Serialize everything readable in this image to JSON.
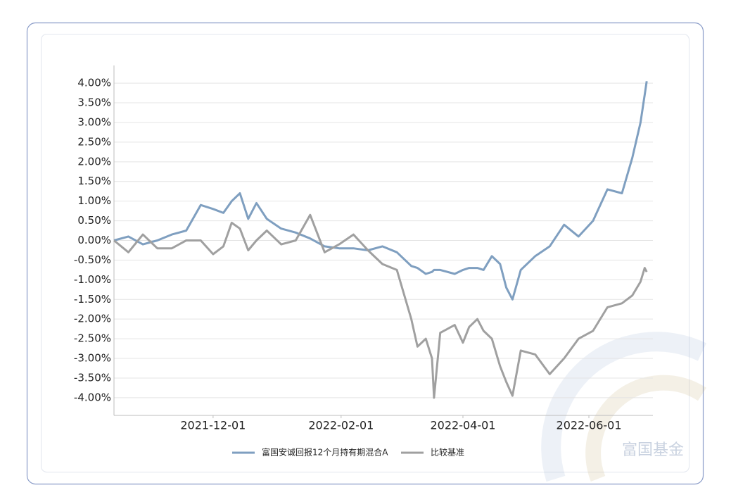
{
  "chart_data": {
    "type": "line",
    "x": [
      "2021-10-14",
      "2021-10-21",
      "2021-10-28",
      "2021-11-04",
      "2021-11-11",
      "2021-11-18",
      "2021-11-25",
      "2021-12-01",
      "2021-12-06",
      "2021-12-10",
      "2021-12-14",
      "2021-12-18",
      "2021-12-22",
      "2021-12-27",
      "2022-01-03",
      "2022-01-10",
      "2022-01-17",
      "2022-01-24",
      "2022-01-31",
      "2022-02-07",
      "2022-02-14",
      "2022-02-21",
      "2022-02-28",
      "2022-03-07",
      "2022-03-10",
      "2022-03-14",
      "2022-03-17",
      "2022-03-18",
      "2022-03-21",
      "2022-03-28",
      "2022-04-01",
      "2022-04-04",
      "2022-04-08",
      "2022-04-11",
      "2022-04-15",
      "2022-04-19",
      "2022-04-22",
      "2022-04-25",
      "2022-04-29",
      "2022-05-06",
      "2022-05-13",
      "2022-05-20",
      "2022-05-27",
      "2022-06-03",
      "2022-06-10",
      "2022-06-17",
      "2022-06-22",
      "2022-06-26",
      "2022-06-28",
      "2022-06-29"
    ],
    "series": [
      {
        "name": "富国安诚回报12个月持有期混合A",
        "color": "#7f9fc0",
        "values": [
          0.0,
          0.1,
          -0.1,
          0.0,
          0.15,
          0.25,
          0.9,
          0.8,
          0.7,
          1.0,
          1.2,
          0.55,
          0.95,
          0.55,
          0.3,
          0.2,
          0.05,
          -0.15,
          -0.2,
          -0.2,
          -0.25,
          -0.15,
          -0.3,
          -0.65,
          -0.7,
          -0.85,
          -0.8,
          -0.75,
          -0.75,
          -0.85,
          -0.75,
          -0.7,
          -0.7,
          -0.75,
          -0.4,
          -0.6,
          -1.2,
          -1.5,
          -0.75,
          -0.4,
          -0.15,
          0.4,
          0.1,
          0.5,
          1.3,
          1.2,
          2.1,
          3.0,
          3.7,
          4.05
        ]
      },
      {
        "name": "比较基准",
        "color": "#a0a0a0",
        "values": [
          0.0,
          -0.3,
          0.15,
          -0.2,
          -0.2,
          0.0,
          0.0,
          -0.35,
          -0.15,
          0.45,
          0.3,
          -0.25,
          0.0,
          0.25,
          -0.1,
          0.0,
          0.65,
          -0.3,
          -0.1,
          0.15,
          -0.25,
          -0.6,
          -0.75,
          -2.0,
          -2.7,
          -2.5,
          -3.0,
          -4.0,
          -2.35,
          -2.15,
          -2.6,
          -2.2,
          -2.0,
          -2.3,
          -2.5,
          -3.2,
          -3.6,
          -3.95,
          -2.8,
          -2.9,
          -3.4,
          -3.0,
          -2.5,
          -2.3,
          -1.7,
          -1.6,
          -1.4,
          -1.05,
          -0.7,
          -0.8
        ]
      }
    ],
    "xlim": [
      "2021-10-14",
      "2022-07-02"
    ],
    "xticks": [
      "2021-12-01",
      "2022-02-01",
      "2022-04-01",
      "2022-06-01"
    ],
    "ylim": [
      -4.45,
      4.45
    ],
    "yticks": [
      {
        "value": -4,
        "label": "-4.00%"
      },
      {
        "value": -3.5,
        "label": "-3.50%"
      },
      {
        "value": -3,
        "label": "-3.00%"
      },
      {
        "value": -2.5,
        "label": "-2.50%"
      },
      {
        "value": -2,
        "label": "-2.00%"
      },
      {
        "value": -1.5,
        "label": "-1.50%"
      },
      {
        "value": -1,
        "label": "-1.00%"
      },
      {
        "value": -0.5,
        "label": "-0.50%"
      },
      {
        "value": 0,
        "label": "0.00%"
      },
      {
        "value": 0.5,
        "label": "0.50%"
      },
      {
        "value": 1,
        "label": "1.00%"
      },
      {
        "value": 1.5,
        "label": "1.50%"
      },
      {
        "value": 2,
        "label": "2.00%"
      },
      {
        "value": 2.5,
        "label": "2.50%"
      },
      {
        "value": 3,
        "label": "3.00%"
      },
      {
        "value": 3.5,
        "label": "3.50%"
      },
      {
        "value": 4,
        "label": "4.00%"
      }
    ],
    "grid": true,
    "legend": "bottom",
    "watermark": "富国基金"
  }
}
